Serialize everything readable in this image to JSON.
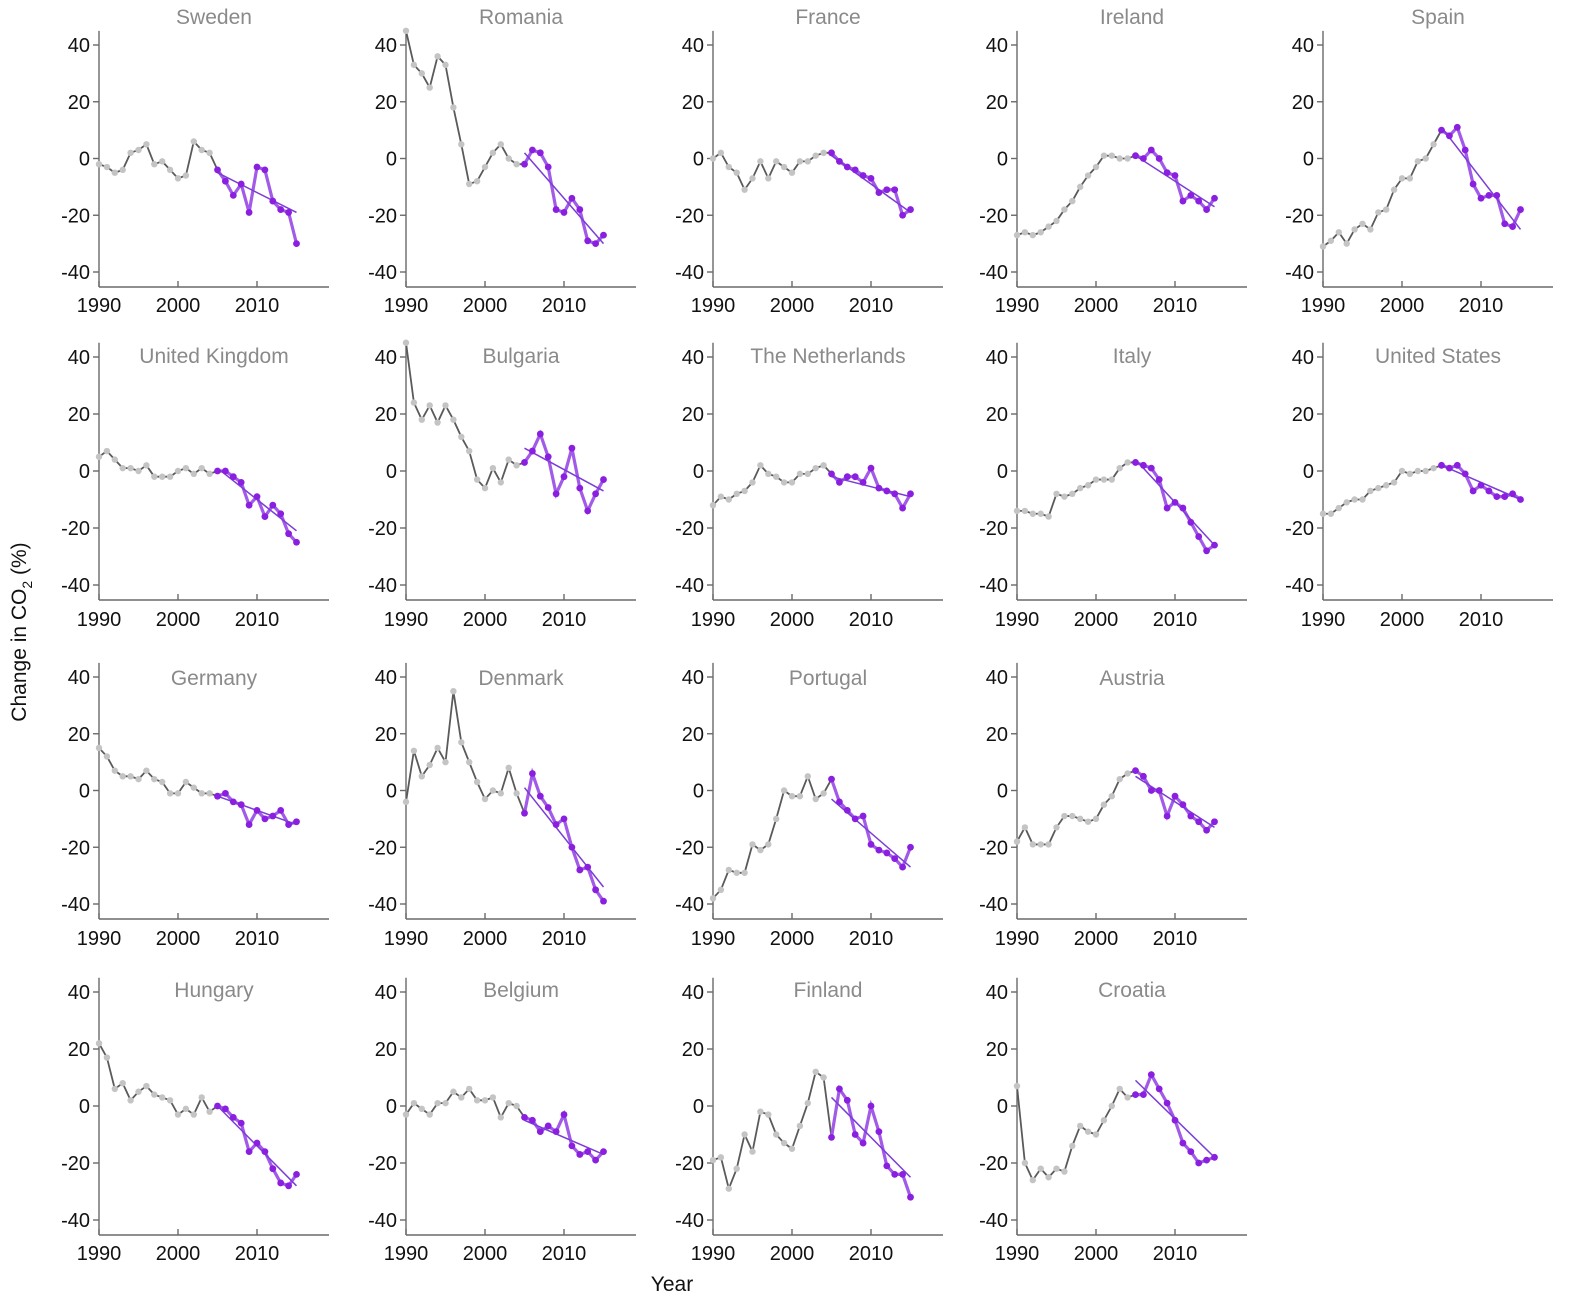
{
  "chart_data": {
    "type": "line",
    "xlabel": "Year",
    "ylabel": "Change in CO",
    "ylabel_sub": "2",
    "ylabel_suffix": " (%)",
    "x_start": 1990,
    "segment_start_index": 15,
    "xlim": [
      1990,
      2016
    ],
    "ylim": [
      -45,
      45
    ],
    "xticks": [
      1990,
      2000,
      2010
    ],
    "yticks": [
      40,
      20,
      0,
      -20,
      -40
    ],
    "colors": {
      "historical": "#c4c4c4",
      "historical_line": "#5a5a5a",
      "recent": "#8a1fe0",
      "recent_line": "#a25ae8",
      "trend": "#7c3cd6"
    },
    "panels": [
      {
        "name": "Sweden",
        "values": [
          -2,
          -3,
          -5,
          -4,
          2,
          3,
          5,
          -2,
          -1,
          -4,
          -7,
          -6,
          6,
          3,
          2,
          -4,
          -8,
          -13,
          -9,
          -19,
          -3,
          -4,
          -15,
          -18,
          -19,
          -30
        ],
        "trend": [
          -5,
          -19
        ]
      },
      {
        "name": "Romania",
        "values": [
          48,
          33,
          30,
          25,
          36,
          33,
          18,
          5,
          -9,
          -8,
          -3,
          2,
          5,
          0,
          -2,
          -2,
          3,
          2,
          -3,
          -18,
          -19,
          -14,
          -18,
          -29,
          -30,
          -27
        ],
        "trend": [
          2,
          -30
        ]
      },
      {
        "name": "France",
        "values": [
          0,
          2,
          -3,
          -5,
          -11,
          -7,
          -1,
          -7,
          -1,
          -3,
          -5,
          -1,
          -1,
          1,
          2,
          2,
          -1,
          -3,
          -4,
          -6,
          -7,
          -12,
          -11,
          -11,
          -20,
          -18
        ],
        "trend": [
          1,
          -19
        ]
      },
      {
        "name": "Ireland",
        "values": [
          -27,
          -26,
          -27,
          -26,
          -24,
          -22,
          -18,
          -15,
          -10,
          -6,
          -3,
          1,
          1,
          0,
          0,
          1,
          0,
          3,
          0,
          -5,
          -6,
          -15,
          -13,
          -15,
          -18,
          -14
        ],
        "trend": [
          1,
          -17
        ]
      },
      {
        "name": "Spain",
        "values": [
          -31,
          -29,
          -26,
          -30,
          -25,
          -23,
          -25,
          -19,
          -18,
          -11,
          -7,
          -7,
          -1,
          0,
          5,
          10,
          8,
          11,
          3,
          -9,
          -14,
          -13,
          -13,
          -23,
          -24,
          -18
        ],
        "trend": [
          11,
          -25
        ]
      },
      {
        "name": "United Kingdom",
        "values": [
          5,
          7,
          4,
          1,
          1,
          0,
          2,
          -2,
          -2,
          -2,
          0,
          1,
          -1,
          1,
          -1,
          0,
          0,
          -2,
          -4,
          -12,
          -9,
          -16,
          -12,
          -15,
          -22,
          -25
        ],
        "trend": [
          1,
          -21
        ]
      },
      {
        "name": "Bulgaria",
        "values": [
          45,
          24,
          18,
          23,
          17,
          23,
          18,
          12,
          7,
          -3,
          -6,
          1,
          -4,
          4,
          2,
          3,
          7,
          13,
          5,
          -8,
          -2,
          8,
          -6,
          -14,
          -8,
          -3
        ],
        "trend": [
          8,
          -7
        ]
      },
      {
        "name": "The Netherlands",
        "values": [
          -12,
          -9,
          -10,
          -8,
          -7,
          -4,
          2,
          -1,
          -2,
          -4,
          -4,
          -1,
          -1,
          1,
          2,
          -1,
          -4,
          -2,
          -2,
          -4,
          1,
          -6,
          -7,
          -8,
          -13,
          -8
        ],
        "trend": [
          -2,
          -9
        ]
      },
      {
        "name": "Italy",
        "values": [
          -14,
          -14,
          -15,
          -15,
          -16,
          -8,
          -9,
          -8,
          -6,
          -5,
          -3,
          -3,
          -3,
          1,
          3,
          3,
          2,
          1,
          -3,
          -13,
          -11,
          -13,
          -18,
          -23,
          -28,
          -26
        ],
        "trend": [
          4,
          -26
        ]
      },
      {
        "name": "United States",
        "values": [
          -15,
          -15,
          -13,
          -11,
          -10,
          -10,
          -7,
          -6,
          -5,
          -4,
          0,
          -1,
          0,
          0,
          1,
          2,
          1,
          2,
          -1,
          -7,
          -5,
          -7,
          -9,
          -9,
          -8,
          -10
        ],
        "trend": [
          2,
          -10
        ]
      },
      {
        "name": "Germany",
        "values": [
          15,
          12,
          7,
          5,
          5,
          4,
          7,
          4,
          3,
          -1,
          -1,
          3,
          1,
          -1,
          -1,
          -2,
          -1,
          -4,
          -5,
          -12,
          -7,
          -10,
          -9,
          -7,
          -12,
          -11
        ],
        "trend": [
          -2,
          -12
        ]
      },
      {
        "name": "Denmark",
        "values": [
          -4,
          14,
          5,
          9,
          15,
          10,
          35,
          17,
          10,
          3,
          -3,
          0,
          -1,
          8,
          -1,
          -8,
          6,
          -2,
          -6,
          -12,
          -10,
          -20,
          -28,
          -27,
          -35,
          -39
        ],
        "trend": [
          1,
          -34
        ]
      },
      {
        "name": "Portugal",
        "values": [
          -38,
          -35,
          -28,
          -29,
          -29,
          -19,
          -21,
          -19,
          -10,
          0,
          -2,
          -2,
          5,
          -3,
          -1,
          4,
          -4,
          -7,
          -10,
          -9,
          -19,
          -21,
          -22,
          -24,
          -27,
          -20
        ],
        "trend": [
          -3,
          -27
        ]
      },
      {
        "name": "Austria",
        "values": [
          -18,
          -13,
          -19,
          -19,
          -19,
          -13,
          -9,
          -9,
          -10,
          -11,
          -10,
          -5,
          -2,
          4,
          6,
          7,
          5,
          0,
          0,
          -9,
          -2,
          -5,
          -9,
          -11,
          -14,
          -11
        ],
        "trend": [
          5,
          -13
        ]
      },
      {
        "name": "Hungary",
        "values": [
          22,
          17,
          6,
          8,
          2,
          5,
          7,
          4,
          3,
          2,
          -3,
          -1,
          -3,
          3,
          -2,
          0,
          -1,
          -4,
          -6,
          -16,
          -13,
          -16,
          -22,
          -27,
          -28,
          -24
        ],
        "trend": [
          0,
          -28
        ]
      },
      {
        "name": "Belgium",
        "values": [
          -3,
          1,
          -1,
          -3,
          1,
          1,
          5,
          3,
          6,
          2,
          2,
          3,
          -4,
          1,
          0,
          -4,
          -5,
          -9,
          -7,
          -9,
          -3,
          -14,
          -17,
          -16,
          -19,
          -16
        ],
        "trend": [
          -5,
          -17
        ]
      },
      {
        "name": "Finland",
        "values": [
          -19,
          -18,
          -29,
          -22,
          -10,
          -16,
          -2,
          -3,
          -10,
          -13,
          -15,
          -7,
          1,
          12,
          10,
          -11,
          6,
          2,
          -10,
          -13,
          0,
          -9,
          -21,
          -24,
          -24,
          -32
        ],
        "trend": [
          3,
          -25
        ]
      },
      {
        "name": "Croatia",
        "values": [
          7,
          -20,
          -26,
          -22,
          -25,
          -22,
          -23,
          -14,
          -7,
          -9,
          -10,
          -5,
          0,
          6,
          3,
          4,
          4,
          11,
          6,
          1,
          -5,
          -13,
          -16,
          -20,
          -19,
          -18
        ],
        "trend": [
          9,
          -18
        ]
      }
    ]
  }
}
